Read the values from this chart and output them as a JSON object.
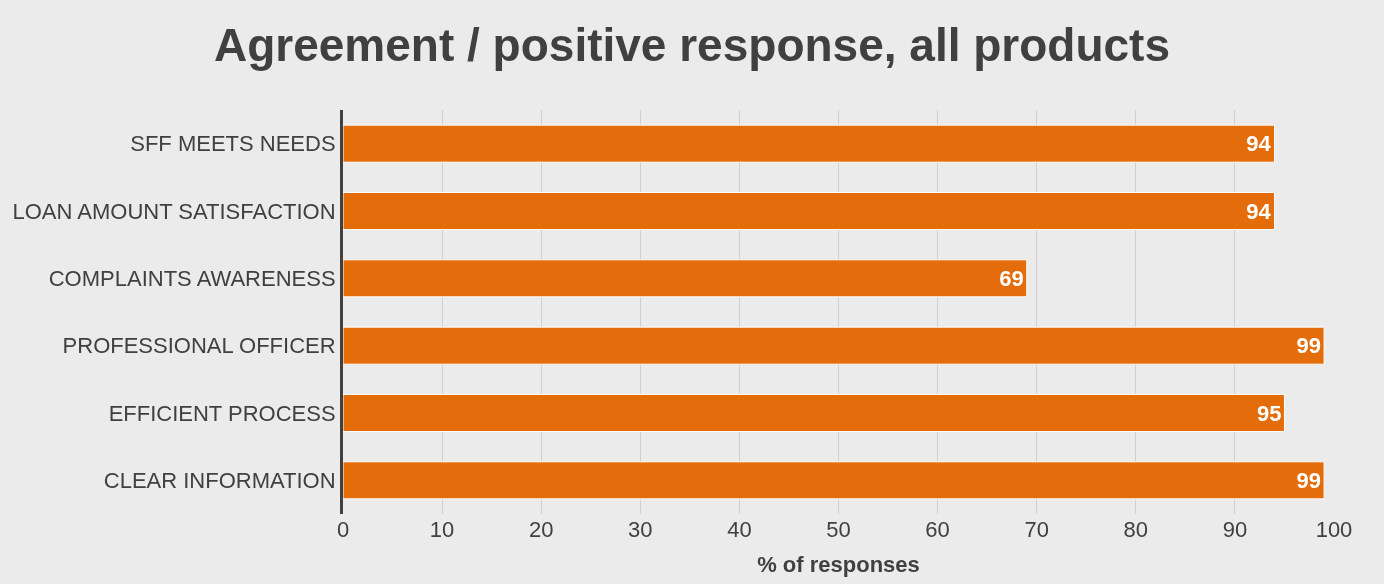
{
  "chart_data": {
    "type": "bar",
    "orientation": "horizontal",
    "title": "Agreement / positive response, all products",
    "xlabel": "% of responses",
    "categories": [
      "SFF MEETS NEEDS",
      "LOAN AMOUNT SATISFACTION",
      "COMPLAINTS AWARENESS",
      "PROFESSIONAL OFFICER",
      "EFFICIENT PROCESS",
      "CLEAR INFORMATION"
    ],
    "values": [
      94,
      94,
      69,
      99,
      95,
      99
    ],
    "color": "#e46c0a",
    "xlim": [
      0,
      100
    ],
    "xticks": [
      0,
      10,
      20,
      30,
      40,
      50,
      60,
      70,
      80,
      90,
      100
    ],
    "grid": "x",
    "data_labels": true
  }
}
